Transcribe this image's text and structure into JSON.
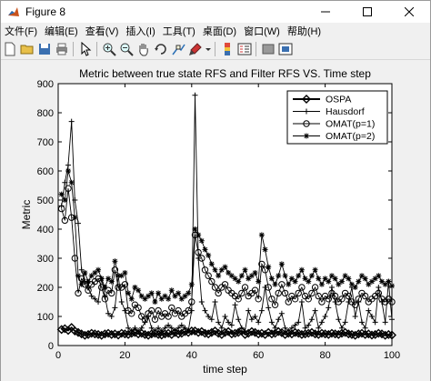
{
  "window": {
    "title": "Figure 8"
  },
  "menu": [
    "文件(F)",
    "编辑(E)",
    "查看(V)",
    "插入(I)",
    "工具(T)",
    "桌面(D)",
    "窗口(W)",
    "帮助(H)"
  ],
  "toolbar_icons": [
    "new-figure-icon",
    "open-file-icon",
    "save-icon",
    "print-icon",
    "edit-plot-arrow-icon",
    "zoom-in-icon",
    "zoom-out-icon",
    "pan-hand-icon",
    "rotate-3d-icon",
    "data-cursor-icon",
    "brush-icon",
    "insert-colorbar-icon",
    "insert-legend-icon",
    "hide-plot-tools-icon",
    "show-plot-tools-icon"
  ],
  "colors": {
    "line": "#000000",
    "axes_bg": "#ffffff",
    "figure_bg": "#f0f0f0"
  },
  "chart_data": {
    "type": "line",
    "title": "Metric between true state RFS and Filter RFS VS. Time step",
    "xlabel": "time step",
    "ylabel": "Metric",
    "xlim": [
      0,
      100
    ],
    "ylim": [
      0,
      900
    ],
    "xticks": [
      "0",
      "20",
      "40",
      "60",
      "80",
      "100"
    ],
    "yticks": [
      "0",
      "100",
      "200",
      "300",
      "400",
      "500",
      "600",
      "700",
      "800",
      "900"
    ],
    "grid": false,
    "legend_position": "top-right",
    "x": [
      1,
      2,
      3,
      4,
      5,
      6,
      7,
      8,
      9,
      10,
      11,
      12,
      13,
      14,
      15,
      16,
      17,
      18,
      19,
      20,
      21,
      22,
      23,
      24,
      25,
      26,
      27,
      28,
      29,
      30,
      31,
      32,
      33,
      34,
      35,
      36,
      37,
      38,
      39,
      40,
      41,
      42,
      43,
      44,
      45,
      46,
      47,
      48,
      49,
      50,
      51,
      52,
      53,
      54,
      55,
      56,
      57,
      58,
      59,
      60,
      61,
      62,
      63,
      64,
      65,
      66,
      67,
      68,
      69,
      70,
      71,
      72,
      73,
      74,
      75,
      76,
      77,
      78,
      79,
      80,
      81,
      82,
      83,
      84,
      85,
      86,
      87,
      88,
      89,
      90,
      91,
      92,
      93,
      94,
      95,
      96,
      97,
      98,
      99,
      100
    ],
    "series": [
      {
        "name": "OSPA",
        "marker": "diamond",
        "values": [
          55,
          58,
          52,
          62,
          50,
          45,
          40,
          35,
          38,
          42,
          40,
          38,
          35,
          40,
          42,
          38,
          40,
          36,
          42,
          40,
          38,
          42,
          45,
          40,
          42,
          38,
          35,
          40,
          42,
          38,
          36,
          40,
          42,
          38,
          45,
          40,
          42,
          48,
          45,
          50,
          50,
          45,
          48,
          42,
          40,
          45,
          50,
          42,
          38,
          45,
          48,
          40,
          42,
          45,
          50,
          38,
          42,
          48,
          45,
          40,
          42,
          38,
          45,
          40,
          42,
          48,
          44,
          38,
          42,
          40,
          45,
          42,
          38,
          40,
          42,
          45,
          40,
          38,
          42,
          40,
          38,
          42,
          40,
          38,
          42,
          45,
          40,
          38,
          35,
          40,
          42,
          38,
          40,
          36,
          38,
          42,
          40,
          35,
          38,
          36
        ]
      },
      {
        "name": "Hausdorf",
        "marker": "plus",
        "values": [
          480,
          560,
          620,
          770,
          500,
          420,
          260,
          220,
          200,
          170,
          160,
          150,
          230,
          170,
          110,
          100,
          130,
          240,
          150,
          120,
          60,
          50,
          60,
          50,
          60,
          80,
          100,
          60,
          50,
          60,
          50,
          60,
          70,
          60,
          50,
          60,
          70,
          60,
          50,
          120,
          860,
          300,
          150,
          120,
          100,
          90,
          150,
          80,
          60,
          100,
          80,
          70,
          140,
          90,
          60,
          50,
          120,
          90,
          100,
          80,
          120,
          200,
          130,
          80,
          60,
          90,
          110,
          60,
          50,
          60,
          70,
          80,
          150,
          60,
          70,
          90,
          120,
          60,
          80,
          100,
          130,
          200,
          150,
          90,
          60,
          80,
          150,
          200,
          100,
          150,
          80,
          60,
          120,
          100,
          80,
          200,
          150,
          80,
          220,
          90
        ]
      },
      {
        "name": "OMAT(p=1)",
        "marker": "circle",
        "values": [
          470,
          430,
          540,
          440,
          300,
          180,
          230,
          210,
          190,
          210,
          220,
          230,
          200,
          160,
          190,
          180,
          260,
          200,
          200,
          210,
          120,
          110,
          140,
          130,
          100,
          90,
          110,
          120,
          90,
          120,
          100,
          110,
          100,
          130,
          110,
          120,
          100,
          110,
          120,
          150,
          380,
          320,
          300,
          260,
          240,
          220,
          200,
          180,
          200,
          210,
          190,
          180,
          170,
          160,
          180,
          200,
          170,
          180,
          190,
          160,
          280,
          260,
          200,
          160,
          140,
          180,
          210,
          180,
          150,
          170,
          160,
          180,
          200,
          170,
          160,
          180,
          200,
          170,
          150,
          170,
          160,
          180,
          170,
          150,
          160,
          180,
          170,
          150,
          140,
          160,
          180,
          170,
          150,
          160,
          170,
          180,
          160,
          150,
          160,
          150
        ]
      },
      {
        "name": "OMAT(p=2)",
        "marker": "asterisk",
        "values": [
          520,
          500,
          600,
          560,
          440,
          240,
          210,
          250,
          220,
          240,
          250,
          260,
          230,
          200,
          230,
          220,
          290,
          240,
          240,
          250,
          180,
          160,
          200,
          190,
          170,
          160,
          170,
          180,
          150,
          180,
          160,
          170,
          160,
          190,
          170,
          180,
          160,
          170,
          180,
          210,
          400,
          380,
          360,
          330,
          310,
          280,
          260,
          240,
          260,
          270,
          250,
          240,
          230,
          220,
          240,
          260,
          230,
          240,
          250,
          220,
          380,
          330,
          270,
          230,
          210,
          240,
          280,
          240,
          210,
          230,
          220,
          240,
          260,
          230,
          220,
          240,
          260,
          230,
          210,
          230,
          220,
          240,
          230,
          210,
          220,
          240,
          230,
          210,
          200,
          220,
          240,
          230,
          210,
          220,
          230,
          240,
          220,
          210,
          220,
          205
        ]
      }
    ]
  }
}
